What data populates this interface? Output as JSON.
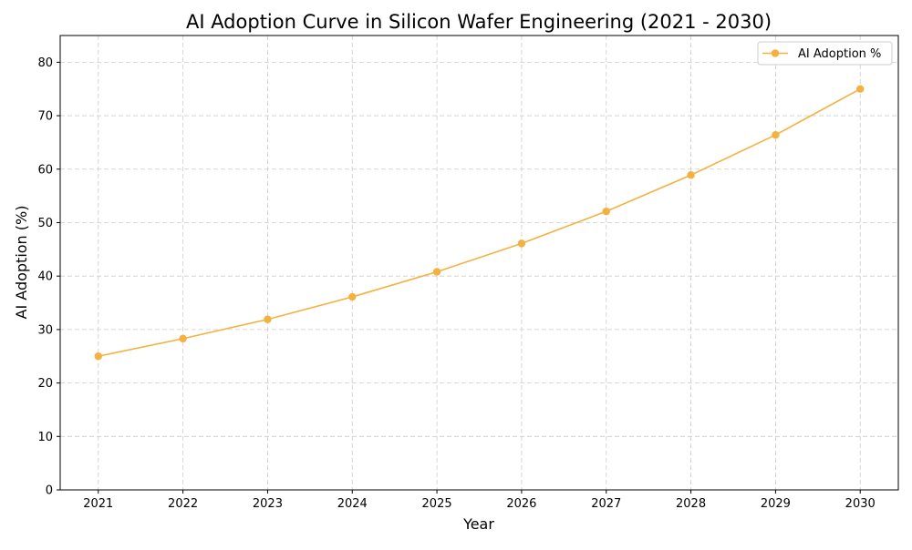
{
  "chart_data": {
    "type": "line",
    "title": "AI Adoption Curve in Silicon Wafer Engineering (2021 - 2030)",
    "xlabel": "Year",
    "ylabel": "AI Adoption (%)",
    "x": [
      2021,
      2022,
      2023,
      2024,
      2025,
      2026,
      2027,
      2028,
      2029,
      2030
    ],
    "x_tick_labels": [
      "2021",
      "2022",
      "2023",
      "2024",
      "2025",
      "2026",
      "2027",
      "2028",
      "2029",
      "2030"
    ],
    "y_tick_labels": [
      "0",
      "10",
      "20",
      "30",
      "40",
      "50",
      "60",
      "70",
      "80"
    ],
    "y_ticks": [
      0,
      10,
      20,
      30,
      40,
      50,
      60,
      70,
      80
    ],
    "xlim": [
      2020.55,
      2030.45
    ],
    "ylim": [
      0,
      85
    ],
    "grid": true,
    "legend_position": "upper-right",
    "series": [
      {
        "name": "AI Adoption %",
        "color": "#F4B13F",
        "marker": "circle",
        "values": [
          25.0,
          28.3,
          31.9,
          36.1,
          40.8,
          46.1,
          52.1,
          58.9,
          66.4,
          75.0
        ]
      }
    ]
  }
}
